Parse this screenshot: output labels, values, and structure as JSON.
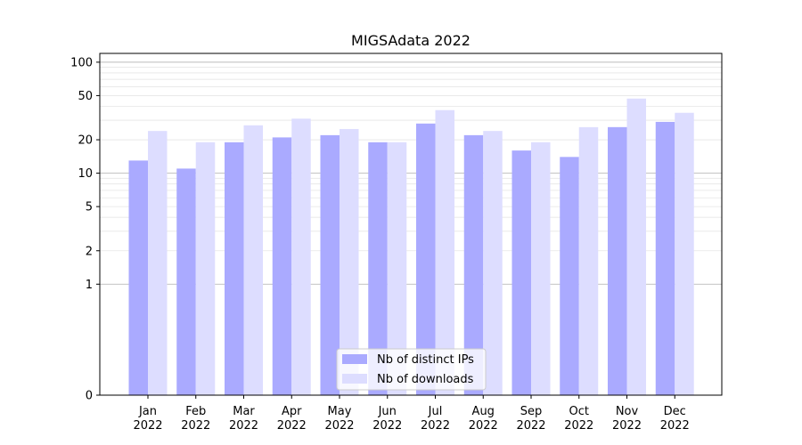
{
  "chart_data": {
    "type": "bar",
    "title": "MIGSAdata 2022",
    "xlabel": "",
    "ylabel": "",
    "y_scale": "symlog",
    "ylim": [
      0,
      120
    ],
    "y_ticks": [
      0,
      1,
      2,
      5,
      10,
      20,
      50,
      100
    ],
    "y_tick_labels": [
      "0",
      "1",
      "2",
      "5",
      "10",
      "20",
      "50",
      "100"
    ],
    "grid": true,
    "legend_position": "bottom-center",
    "categories": [
      "Jan\n2022",
      "Feb\n2022",
      "Mar\n2022",
      "Apr\n2022",
      "May\n2022",
      "Jun\n2022",
      "Jul\n2022",
      "Aug\n2022",
      "Sep\n2022",
      "Oct\n2022",
      "Nov\n2022",
      "Dec\n2022"
    ],
    "series": [
      {
        "name": "Nb of distinct IPs",
        "color": "#aaaaff",
        "values": [
          13,
          11,
          19,
          21,
          22,
          19,
          28,
          22,
          16,
          14,
          26,
          29
        ]
      },
      {
        "name": "Nb of downloads",
        "color": "#ddddff",
        "values": [
          24,
          19,
          27,
          31,
          25,
          19,
          37,
          24,
          19,
          26,
          47,
          35
        ]
      }
    ]
  }
}
